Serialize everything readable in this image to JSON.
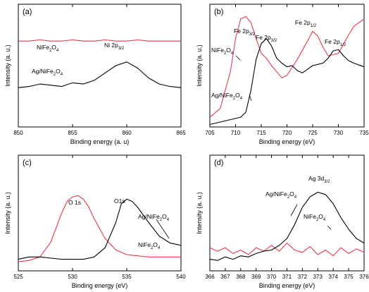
{
  "chart_data": [
    {
      "panel_label": "(a)",
      "type": "line",
      "xlabel": "Binding energy (a. u)",
      "ylabel": "Intensity (a. u.)",
      "xlim": [
        850,
        865
      ],
      "xticks": [
        850,
        855,
        860,
        865
      ],
      "yticks": false,
      "annotations": [
        {
          "text": "NiFe",
          "sub": "2",
          "text2": "O",
          "sub2": "4"
        },
        {
          "text": "Ni 2p",
          "sub": "3/2"
        },
        {
          "text": "Ag/NiFe",
          "sub": "2",
          "text2": "O",
          "sub2": "4"
        }
      ],
      "series": [
        {
          "color": "#e8384f",
          "x": [
            850,
            851,
            852,
            853,
            854,
            855,
            856,
            857,
            858,
            859,
            860,
            861,
            862,
            863,
            864,
            865
          ],
          "values": [
            0.7,
            0.7,
            0.71,
            0.7,
            0.7,
            0.71,
            0.7,
            0.7,
            0.71,
            0.7,
            0.7,
            0.71,
            0.7,
            0.7,
            0.7,
            0.7
          ]
        },
        {
          "color": "#000000",
          "x": [
            850,
            851,
            852,
            853,
            854,
            855,
            856,
            857,
            858,
            859,
            860,
            861,
            862,
            863,
            864,
            865
          ],
          "values": [
            0.32,
            0.33,
            0.35,
            0.34,
            0.33,
            0.36,
            0.35,
            0.38,
            0.44,
            0.5,
            0.53,
            0.48,
            0.4,
            0.35,
            0.33,
            0.32
          ]
        }
      ]
    },
    {
      "panel_label": "(b)",
      "type": "line",
      "xlabel": "Binding energy (eV)",
      "ylabel": "Intensity (a. u.)",
      "xlim": [
        705,
        735
      ],
      "xticks": [
        705,
        710,
        715,
        720,
        725,
        730,
        735
      ],
      "yticks": false,
      "annotations": [
        {
          "text": "Fe 2p",
          "sub": "3/2"
        },
        {
          "text": "Fe 2p",
          "sub": "1/2"
        },
        {
          "text": "Fe 2p",
          "sub": "3/2"
        },
        {
          "text": "Fe 2p",
          "sub": "1/2"
        },
        {
          "text": "NiFe",
          "sub": "2",
          "text2": "O",
          "sub2": "4"
        },
        {
          "text": "Ag/NiFe",
          "sub": "2",
          "text2": "O",
          "sub2": "4"
        }
      ],
      "series": [
        {
          "color": "#e8384f",
          "x": [
            705,
            707,
            709,
            710,
            711,
            712,
            713,
            714,
            715,
            716,
            717,
            718,
            719,
            720,
            722,
            724,
            725,
            726,
            727,
            728,
            730,
            732,
            733,
            735
          ],
          "values": [
            0.08,
            0.15,
            0.45,
            0.72,
            0.88,
            0.9,
            0.85,
            0.72,
            0.6,
            0.56,
            0.5,
            0.45,
            0.4,
            0.42,
            0.55,
            0.7,
            0.78,
            0.74,
            0.65,
            0.58,
            0.6,
            0.75,
            0.82,
            0.88
          ]
        },
        {
          "color": "#000000",
          "x": [
            705,
            707,
            709,
            711,
            712,
            713,
            714,
            715,
            716,
            717,
            718,
            719,
            720,
            721,
            722,
            723,
            724,
            725,
            726,
            727,
            728,
            729,
            730,
            731,
            732,
            733,
            735
          ],
          "values": [
            0.02,
            0.04,
            0.06,
            0.08,
            0.12,
            0.3,
            0.55,
            0.68,
            0.72,
            0.66,
            0.56,
            0.52,
            0.49,
            0.5,
            0.46,
            0.44,
            0.47,
            0.5,
            0.51,
            0.52,
            0.56,
            0.62,
            0.63,
            0.58,
            0.54,
            0.52,
            0.49
          ]
        }
      ]
    },
    {
      "panel_label": "(c)",
      "type": "line",
      "xlabel": "Binding energy (eV)",
      "ylabel": "Intensity (a. u.)",
      "xlim": [
        525,
        540
      ],
      "xticks": [
        525,
        530,
        535,
        540
      ],
      "yticks": false,
      "annotations": [
        {
          "text": "O 1s"
        },
        {
          "text": "O1s"
        },
        {
          "text": "Ag/NiFe",
          "sub": "2",
          "text2": "O",
          "sub2": "4"
        },
        {
          "text": "NiFe",
          "sub": "2",
          "text2": "O",
          "sub2": "4"
        }
      ],
      "series": [
        {
          "color": "#e8384f",
          "x": [
            525,
            526,
            527,
            528,
            529,
            529.5,
            530,
            530.5,
            531,
            531.5,
            532,
            533,
            534,
            535,
            536,
            537,
            538,
            539,
            540
          ],
          "values": [
            0.08,
            0.09,
            0.12,
            0.25,
            0.5,
            0.6,
            0.64,
            0.65,
            0.62,
            0.55,
            0.45,
            0.28,
            0.18,
            0.14,
            0.13,
            0.12,
            0.12,
            0.12,
            0.12
          ]
        },
        {
          "color": "#000000",
          "x": [
            525,
            526,
            527,
            528,
            529,
            530,
            531,
            532,
            533,
            534,
            534.5,
            535,
            535.5,
            536,
            537,
            538,
            539,
            540
          ],
          "values": [
            0.1,
            0.12,
            0.12,
            0.11,
            0.1,
            0.1,
            0.1,
            0.12,
            0.2,
            0.42,
            0.58,
            0.62,
            0.6,
            0.55,
            0.42,
            0.3,
            0.24,
            0.22
          ]
        }
      ]
    },
    {
      "panel_label": "(d)",
      "type": "line",
      "xlabel": "Binding energy (eV)",
      "ylabel": "Intensity (a. u.)",
      "xlim": [
        366,
        376
      ],
      "xticks": [
        366,
        367,
        368,
        369,
        370,
        371,
        372,
        373,
        374,
        375,
        376
      ],
      "yticks": false,
      "annotations": [
        {
          "text": "Ag 3d",
          "sub": "3/2"
        },
        {
          "text": "Ag/NiFe",
          "sub": "2",
          "text2": "O",
          "sub2": "4"
        },
        {
          "text": "NiFe",
          "sub": "2",
          "text2": "O",
          "sub2": "4"
        }
      ],
      "series": [
        {
          "color": "#e8384f",
          "x": [
            366,
            366.5,
            367,
            367.5,
            368,
            368.5,
            369,
            369.5,
            370,
            370.5,
            371,
            371.5,
            372,
            372.5,
            373,
            373.5,
            374,
            374.5,
            375,
            375.5,
            376
          ],
          "values": [
            0.2,
            0.17,
            0.2,
            0.15,
            0.18,
            0.14,
            0.2,
            0.17,
            0.22,
            0.17,
            0.24,
            0.18,
            0.16,
            0.21,
            0.14,
            0.18,
            0.13,
            0.2,
            0.15,
            0.19,
            0.16
          ]
        },
        {
          "color": "#000000",
          "x": [
            366,
            366.5,
            367,
            367.5,
            368,
            368.5,
            369,
            369.5,
            370,
            370.5,
            371,
            371.5,
            372,
            372.5,
            373,
            373.5,
            374,
            374.5,
            375,
            375.5,
            376
          ],
          "values": [
            0.1,
            0.09,
            0.12,
            0.1,
            0.13,
            0.12,
            0.15,
            0.17,
            0.18,
            0.22,
            0.28,
            0.4,
            0.55,
            0.64,
            0.68,
            0.66,
            0.58,
            0.46,
            0.36,
            0.28,
            0.24
          ]
        }
      ]
    }
  ]
}
